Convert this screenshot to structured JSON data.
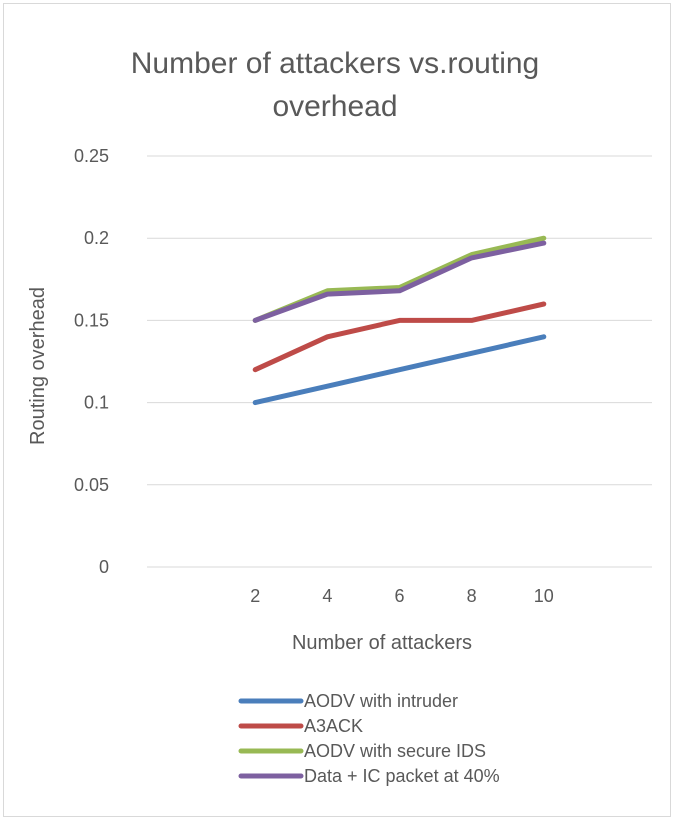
{
  "chart_data": {
    "type": "line",
    "title_lines": [
      "Number of attackers vs.routing",
      "overhead"
    ],
    "xlabel": "Number of attackers",
    "ylabel": "Routing overhead",
    "categories": [
      "2",
      "4",
      "6",
      "8",
      "10"
    ],
    "x_axis_slots": 7,
    "ylim": [
      0,
      0.25
    ],
    "yticks": [
      "0",
      "0.05",
      "0.1",
      "0.15",
      "0.2",
      "0.25"
    ],
    "grid": true,
    "legend_position": "bottom",
    "series": [
      {
        "name": "AODV with intruder",
        "color": "#4a7ebb",
        "values": [
          0.1,
          0.11,
          0.12,
          0.13,
          0.14
        ]
      },
      {
        "name": "A3ACK",
        "color": "#be4b48",
        "values": [
          0.12,
          0.14,
          0.15,
          0.15,
          0.16
        ]
      },
      {
        "name": "AODV with secure IDS",
        "color": "#98b954",
        "values": [
          0.15,
          0.168,
          0.17,
          0.19,
          0.2
        ]
      },
      {
        "name": "Data + IC packet at 40%",
        "color": "#7d60a0",
        "values": [
          0.15,
          0.166,
          0.168,
          0.188,
          0.197
        ]
      }
    ]
  }
}
